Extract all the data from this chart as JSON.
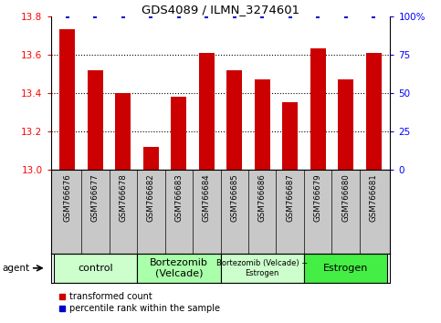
{
  "title": "GDS4089 / ILMN_3274601",
  "samples": [
    "GSM766676",
    "GSM766677",
    "GSM766678",
    "GSM766682",
    "GSM766683",
    "GSM766684",
    "GSM766685",
    "GSM766686",
    "GSM766687",
    "GSM766679",
    "GSM766680",
    "GSM766681"
  ],
  "bar_values": [
    13.73,
    13.52,
    13.4,
    13.12,
    13.38,
    13.61,
    13.52,
    13.47,
    13.35,
    13.63,
    13.47,
    13.61
  ],
  "percentile_values": [
    100,
    100,
    100,
    100,
    100,
    100,
    100,
    100,
    100,
    100,
    100,
    100
  ],
  "bar_color": "#cc0000",
  "percentile_color": "#0000cc",
  "bar_bottom": 13.0,
  "ylim_left": [
    13.0,
    13.8
  ],
  "ylim_right": [
    0,
    100
  ],
  "yticks_left": [
    13.0,
    13.2,
    13.4,
    13.6,
    13.8
  ],
  "yticks_right": [
    0,
    25,
    50,
    75,
    100
  ],
  "ytick_labels_right": [
    "0",
    "25",
    "50",
    "75",
    "100%"
  ],
  "groups": [
    {
      "label": "control",
      "start": 0,
      "end": 3,
      "color": "#ccffcc",
      "fontsize": 8
    },
    {
      "label": "Bortezomib\n(Velcade)",
      "start": 3,
      "end": 6,
      "color": "#aaffaa",
      "fontsize": 8
    },
    {
      "label": "Bortezomib (Velcade) +\nEstrogen",
      "start": 6,
      "end": 9,
      "color": "#ccffcc",
      "fontsize": 6
    },
    {
      "label": "Estrogen",
      "start": 9,
      "end": 12,
      "color": "#44ee44",
      "fontsize": 8
    }
  ],
  "agent_label": "agent",
  "legend_red_label": "transformed count",
  "legend_blue_label": "percentile rank within the sample",
  "sample_bg_color": "#c8c8c8",
  "background_color": "#ffffff"
}
